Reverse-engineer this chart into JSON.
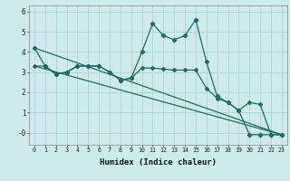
{
  "title": "",
  "xlabel": "Humidex (Indice chaleur)",
  "ylabel": "",
  "bg_color": "#ceeaea",
  "grid_color": "#aed4d4",
  "line_color": "#1e6b65",
  "xlim": [
    -0.5,
    23.5
  ],
  "ylim": [
    -0.6,
    6.3
  ],
  "yticks": [
    0,
    1,
    2,
    3,
    4,
    5,
    6
  ],
  "ytick_labels": [
    "-0",
    "1",
    "2",
    "3",
    "4",
    "5",
    "6"
  ],
  "xticks": [
    0,
    1,
    2,
    3,
    4,
    5,
    6,
    7,
    8,
    9,
    10,
    11,
    12,
    13,
    14,
    15,
    16,
    17,
    18,
    19,
    20,
    21,
    22,
    23
  ],
  "line1_x": [
    0,
    1,
    2,
    3,
    4,
    5,
    6,
    7,
    8,
    9,
    10,
    11,
    12,
    13,
    14,
    15,
    16,
    17,
    18,
    19,
    20,
    21,
    22,
    23
  ],
  "line1_y": [
    4.2,
    3.3,
    2.9,
    3.0,
    3.3,
    3.3,
    3.3,
    3.0,
    2.6,
    2.7,
    4.0,
    5.4,
    4.8,
    4.6,
    4.8,
    5.6,
    3.5,
    1.8,
    1.5,
    1.1,
    -0.1,
    -0.1,
    -0.1,
    -0.1
  ],
  "line2_x": [
    0,
    1,
    2,
    3,
    4,
    5,
    6,
    7,
    8,
    9,
    10,
    11,
    12,
    13,
    14,
    15,
    16,
    17,
    18,
    19,
    20,
    21,
    22,
    23
  ],
  "line2_y": [
    3.3,
    3.3,
    2.9,
    3.0,
    3.3,
    3.3,
    3.3,
    3.0,
    2.6,
    2.7,
    3.2,
    3.2,
    3.15,
    3.1,
    3.1,
    3.1,
    2.2,
    1.7,
    1.5,
    1.1,
    1.5,
    1.4,
    -0.1,
    -0.1
  ],
  "line3_x": [
    0,
    23
  ],
  "line3_y": [
    4.2,
    -0.1
  ],
  "line4_x": [
    0,
    23
  ],
  "line4_y": [
    3.3,
    -0.1
  ]
}
